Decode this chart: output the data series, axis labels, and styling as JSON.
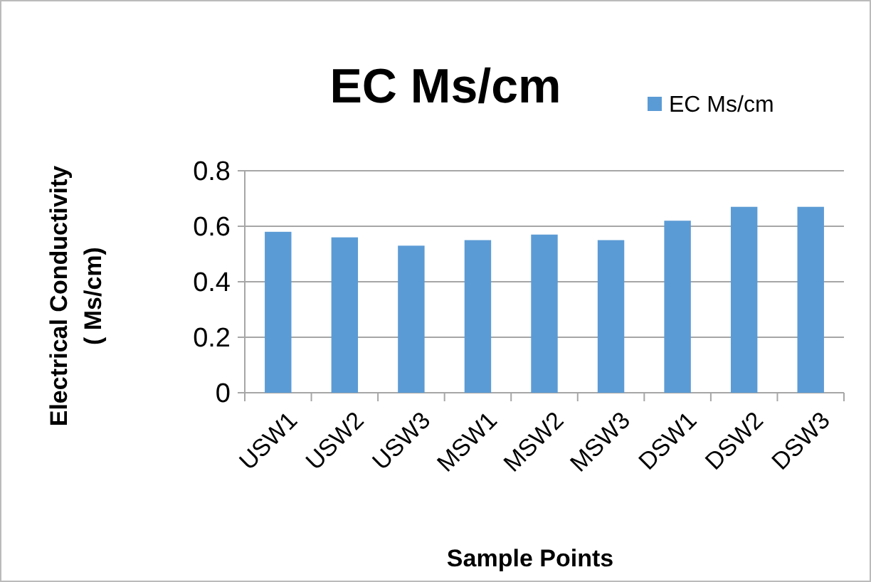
{
  "chart_data": {
    "type": "bar",
    "title": "EC Ms/cm",
    "xlabel": "Sample Points",
    "ylabel": "Electrical Conductivity\n( Ms/cm)",
    "categories": [
      "USW1",
      "USW2",
      "USW3",
      "MSW1",
      "MSW2",
      "MSW3",
      "DSW1",
      "DSW2",
      "DSW3"
    ],
    "series": [
      {
        "name": "EC Ms/cm",
        "color": "#5b9bd5",
        "values": [
          0.58,
          0.56,
          0.53,
          0.55,
          0.57,
          0.55,
          0.62,
          0.67,
          0.67
        ]
      }
    ],
    "ylim": [
      0,
      0.8
    ],
    "yticks": [
      0,
      0.2,
      0.4,
      0.6,
      0.8
    ],
    "grid": "y",
    "legend": "top right"
  }
}
